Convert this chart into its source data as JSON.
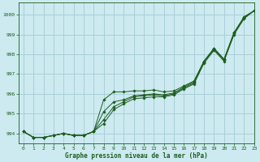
{
  "title": "Graphe pression niveau de la mer (hPa)",
  "bg_color": "#cceaf0",
  "grid_color": "#aacfd8",
  "line_color": "#1e5c1e",
  "xlim": [
    -0.5,
    23
  ],
  "ylim": [
    993.5,
    1000.6
  ],
  "yticks": [
    994,
    995,
    996,
    997,
    998,
    999,
    1000
  ],
  "xticks": [
    0,
    1,
    2,
    3,
    4,
    5,
    6,
    7,
    8,
    9,
    10,
    11,
    12,
    13,
    14,
    15,
    16,
    17,
    18,
    19,
    20,
    21,
    22,
    23
  ],
  "series": [
    [
      994.1,
      993.8,
      993.8,
      993.9,
      994.0,
      993.9,
      993.9,
      994.1,
      994.5,
      995.2,
      995.5,
      995.75,
      995.8,
      995.85,
      995.85,
      995.95,
      996.25,
      996.5,
      997.55,
      998.2,
      997.65,
      999.0,
      999.8,
      1000.2
    ],
    [
      994.1,
      993.8,
      993.8,
      993.9,
      994.0,
      993.9,
      993.9,
      994.1,
      994.7,
      995.35,
      995.6,
      995.85,
      995.9,
      995.95,
      995.9,
      996.0,
      996.3,
      996.55,
      997.6,
      998.25,
      997.7,
      999.05,
      999.85,
      1000.2
    ],
    [
      994.1,
      993.8,
      993.8,
      993.9,
      994.0,
      993.9,
      993.9,
      994.1,
      995.1,
      995.6,
      995.7,
      995.9,
      995.95,
      996.0,
      995.95,
      996.05,
      996.35,
      996.6,
      997.65,
      998.3,
      997.75,
      999.1,
      999.9,
      1000.2
    ],
    [
      994.1,
      993.8,
      993.8,
      993.9,
      994.0,
      993.9,
      993.9,
      994.1,
      995.7,
      996.1,
      996.1,
      996.15,
      996.15,
      996.2,
      996.1,
      996.15,
      996.4,
      996.65,
      997.65,
      998.3,
      997.75,
      999.1,
      999.85,
      1000.2
    ]
  ]
}
